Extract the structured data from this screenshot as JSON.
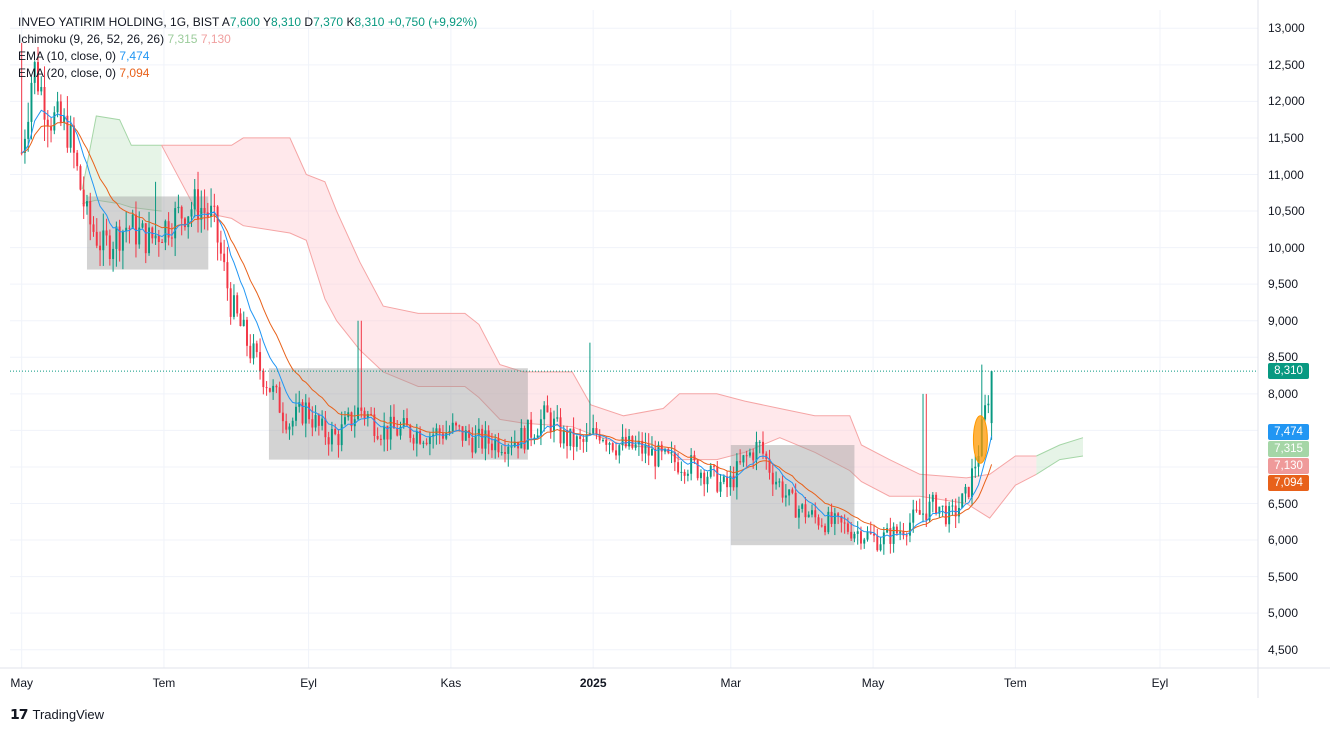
{
  "legend": {
    "symbol": "INVEO YATIRIM HOLDING, 1G, BIST",
    "ohlc": [
      {
        "k": "A",
        "v": "7,600"
      },
      {
        "k": "Y",
        "v": "8,310"
      },
      {
        "k": "D",
        "v": "7,370"
      },
      {
        "k": "K",
        "v": "8,310"
      }
    ],
    "change": "+0,750 (+9,92%)",
    "ichimoku_label": "Ichimoku (9, 26, 52, 26, 26)",
    "ichimoku_v1": "7,315",
    "ichimoku_v2": "7,130",
    "ema10_label": "EMA (10, close, 0)",
    "ema10_value": "7,474",
    "ema20_label": "EMA (20, close, 0)",
    "ema20_value": "7,094"
  },
  "price_badges": [
    {
      "label": "8,310",
      "value": 8.31,
      "color": "#089981"
    },
    {
      "label": "7,474",
      "value": 7.474,
      "color": "#2196f3"
    },
    {
      "label": "7,315",
      "value": 7.315,
      "color": "#a5d6a7"
    },
    {
      "label": "7,130",
      "value": 7.13,
      "color": "#ef9a9a"
    },
    {
      "label": "7,094",
      "value": 7.094,
      "color": "#e8611a"
    }
  ],
  "colors": {
    "up": "#089981",
    "down": "#f23645",
    "ema10": "#2196f3",
    "ema20": "#e8611a",
    "cloud_bull": "#c8e6c9",
    "cloud_bear": "#ffcdd2",
    "box": "#9e9e9e",
    "highlight": "#ff9800"
  },
  "brand": "TradingView",
  "chart_data": {
    "type": "candlestick",
    "y_axis": {
      "ticks": [
        4.5,
        5.0,
        5.5,
        6.0,
        6.5,
        7.0,
        7.5,
        8.0,
        8.5,
        9.0,
        9.5,
        10.0,
        10.5,
        11.0,
        11.5,
        12.0,
        12.5,
        13.0
      ],
      "tick_labels": [
        "4,500",
        "5,000",
        "5,500",
        "6,000",
        "6,500",
        "7,000",
        "7,500",
        "8,000",
        "8,500",
        "9,000",
        "9,500",
        "10,000",
        "10,500",
        "11,000",
        "11,500",
        "12,000",
        "12,500",
        "13,000"
      ],
      "range": [
        4.25,
        13.25
      ]
    },
    "x_axis": {
      "labels": [
        "May",
        "Tem",
        "Eyl",
        "Kas",
        "2025",
        "Mar",
        "May",
        "Tem",
        "Eyl"
      ],
      "bold": [
        false,
        false,
        false,
        false,
        true,
        false,
        false,
        false,
        false
      ],
      "label_days": [
        0,
        61,
        123,
        184,
        245,
        304,
        365,
        426,
        488
      ],
      "range_days": [
        -5,
        530
      ]
    },
    "last_price": 8.31,
    "anchors": [
      [
        0,
        11.3
      ],
      [
        5,
        12.5
      ],
      [
        12,
        11.8
      ],
      [
        20,
        11.6
      ],
      [
        28,
        10.4
      ],
      [
        35,
        10.0
      ],
      [
        45,
        10.3
      ],
      [
        55,
        10.1
      ],
      [
        65,
        10.4
      ],
      [
        75,
        10.6
      ],
      [
        82,
        10.4
      ],
      [
        90,
        9.2
      ],
      [
        98,
        8.6
      ],
      [
        108,
        8.0
      ],
      [
        115,
        7.6
      ],
      [
        122,
        7.8
      ],
      [
        128,
        7.5
      ],
      [
        135,
        7.4
      ],
      [
        145,
        7.8
      ],
      [
        155,
        7.5
      ],
      [
        165,
        7.5
      ],
      [
        175,
        7.45
      ],
      [
        185,
        7.5
      ],
      [
        195,
        7.35
      ],
      [
        205,
        7.35
      ],
      [
        215,
        7.4
      ],
      [
        225,
        7.7
      ],
      [
        232,
        7.4
      ],
      [
        240,
        7.3
      ],
      [
        248,
        7.5
      ],
      [
        255,
        7.3
      ],
      [
        265,
        7.25
      ],
      [
        275,
        7.1
      ],
      [
        285,
        7.05
      ],
      [
        295,
        6.9
      ],
      [
        302,
        6.7
      ],
      [
        310,
        7.1
      ],
      [
        316,
        7.3
      ],
      [
        322,
        6.9
      ],
      [
        330,
        6.5
      ],
      [
        340,
        6.3
      ],
      [
        350,
        6.2
      ],
      [
        360,
        6.1
      ],
      [
        367,
        6.0
      ],
      [
        375,
        6.1
      ],
      [
        383,
        6.3
      ],
      [
        392,
        6.5
      ],
      [
        398,
        6.3
      ],
      [
        405,
        6.6
      ],
      [
        410,
        7.2
      ],
      [
        416,
        8.3
      ]
    ],
    "spikes": [
      [
        0,
        12.8
      ],
      [
        24,
        11.1
      ],
      [
        57,
        10.9
      ],
      [
        145,
        9.0
      ],
      [
        244,
        8.7
      ],
      [
        387,
        8.0
      ],
      [
        412,
        8.4
      ]
    ],
    "cloud_segments": [
      {
        "color": "bull",
        "top": [
          [
            26,
            10.8
          ],
          [
            32,
            11.8
          ],
          [
            42,
            11.75
          ],
          [
            47,
            11.4
          ],
          [
            60,
            11.4
          ]
        ],
        "bottom": [
          [
            26,
            10.6
          ],
          [
            32,
            10.65
          ],
          [
            42,
            10.6
          ],
          [
            47,
            10.55
          ],
          [
            60,
            10.5
          ]
        ]
      },
      {
        "color": "bear",
        "top": [
          [
            60,
            11.4
          ],
          [
            75,
            11.4
          ],
          [
            90,
            11.4
          ],
          [
            95,
            11.5
          ],
          [
            115,
            11.5
          ],
          [
            122,
            11.0
          ],
          [
            130,
            10.9
          ],
          [
            135,
            10.5
          ],
          [
            145,
            9.8
          ],
          [
            155,
            9.2
          ],
          [
            170,
            9.1
          ],
          [
            190,
            9.1
          ],
          [
            196,
            8.95
          ],
          [
            205,
            8.4
          ],
          [
            215,
            8.3
          ],
          [
            236,
            8.3
          ],
          [
            244,
            7.85
          ],
          [
            258,
            7.7
          ],
          [
            275,
            7.8
          ],
          [
            282,
            8.0
          ],
          [
            298,
            8.0
          ],
          [
            310,
            7.9
          ],
          [
            325,
            7.8
          ],
          [
            340,
            7.7
          ],
          [
            355,
            7.7
          ],
          [
            360,
            7.3
          ],
          [
            372,
            7.1
          ],
          [
            385,
            6.9
          ],
          [
            405,
            6.85
          ],
          [
            415,
            6.9
          ],
          [
            426,
            7.15
          ],
          [
            435,
            7.15
          ]
        ],
        "bottom": [
          [
            60,
            11.4
          ],
          [
            75,
            10.5
          ],
          [
            90,
            10.4
          ],
          [
            95,
            10.3
          ],
          [
            115,
            10.2
          ],
          [
            122,
            10.1
          ],
          [
            130,
            9.3
          ],
          [
            135,
            9.0
          ],
          [
            145,
            8.6
          ],
          [
            155,
            8.3
          ],
          [
            170,
            8.1
          ],
          [
            190,
            8.1
          ],
          [
            196,
            7.95
          ],
          [
            205,
            7.65
          ],
          [
            215,
            7.6
          ],
          [
            236,
            7.55
          ],
          [
            244,
            7.45
          ],
          [
            258,
            7.3
          ],
          [
            275,
            7.25
          ],
          [
            282,
            7.1
          ],
          [
            298,
            7.1
          ],
          [
            310,
            7.2
          ],
          [
            325,
            7.4
          ],
          [
            340,
            7.2
          ],
          [
            355,
            6.95
          ],
          [
            360,
            6.8
          ],
          [
            372,
            6.6
          ],
          [
            385,
            6.6
          ],
          [
            405,
            6.5
          ],
          [
            415,
            6.3
          ],
          [
            426,
            6.75
          ],
          [
            435,
            6.9
          ]
        ]
      },
      {
        "color": "bull",
        "top": [
          [
            435,
            7.15
          ],
          [
            445,
            7.3
          ],
          [
            455,
            7.4
          ]
        ],
        "bottom": [
          [
            435,
            6.9
          ],
          [
            445,
            7.1
          ],
          [
            455,
            7.15
          ]
        ]
      }
    ],
    "boxes": [
      {
        "x": [
          28,
          80
        ],
        "y": [
          9.7,
          10.7
        ]
      },
      {
        "x": [
          106,
          217
        ],
        "y": [
          7.1,
          8.35
        ]
      },
      {
        "x": [
          304,
          357
        ],
        "y": [
          5.93,
          7.3
        ]
      }
    ],
    "highlight": {
      "x": [
        408,
        414
      ],
      "y": [
        7.05,
        7.7
      ]
    }
  }
}
